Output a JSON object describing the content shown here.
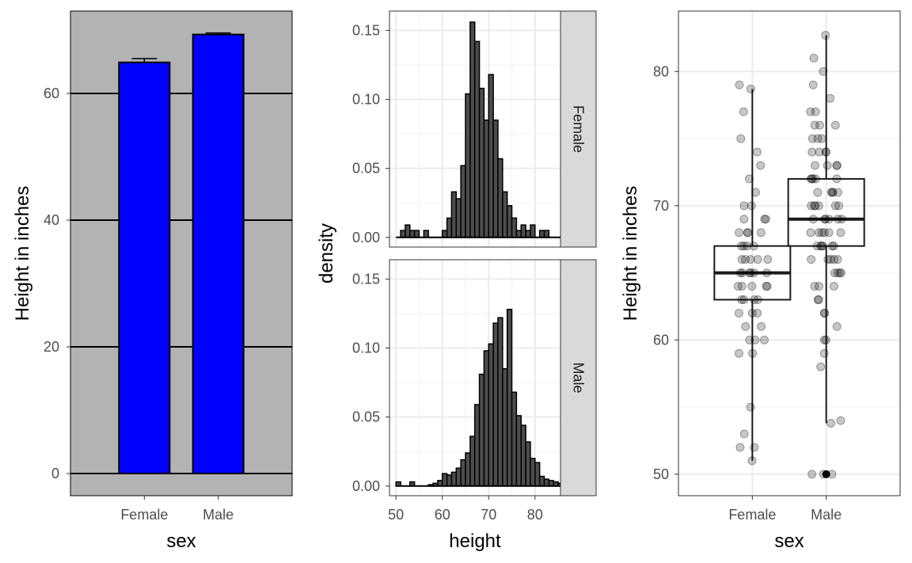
{
  "chart_data": [
    {
      "type": "bar",
      "categories": [
        "Female",
        "Male"
      ],
      "values": [
        64.9,
        69.3
      ],
      "errors": [
        0.6,
        0.25
      ],
      "xlabel": "sex",
      "ylabel": "Height in inches",
      "ylim": [
        -3.5,
        73
      ],
      "yticks": [
        0,
        20,
        40,
        60
      ],
      "colors": {
        "panel": "#b3b3b3",
        "bar": "#0000ff",
        "grid": "#000000"
      }
    },
    {
      "type": "histogram",
      "xlabel": "height",
      "ylabel": "density",
      "xlim": [
        48.6,
        85.5
      ],
      "ylim": [
        -0.007,
        0.164
      ],
      "xticks": [
        50,
        60,
        70,
        80
      ],
      "yticks": [
        0,
        0.05,
        0.1,
        0.15
      ],
      "ytick_labels": [
        "0.00",
        "0.05",
        "0.10",
        "0.15"
      ],
      "bin_start": 50,
      "bin_width": 1,
      "facets": [
        {
          "label": "Female",
          "density": [
            0,
            0.005,
            0.009,
            0.005,
            0.005,
            0,
            0.005,
            0,
            0,
            0,
            0.005,
            0.014,
            0.033,
            0.028,
            0.052,
            0.104,
            0.156,
            0.142,
            0.108,
            0.085,
            0.118,
            0.085,
            0.057,
            0.033,
            0.023,
            0.014,
            0.005,
            0.009,
            0.005,
            0.009,
            0,
            0.005,
            0.005,
            0,
            0,
            0
          ]
        },
        {
          "label": "Male",
          "density": [
            0.003,
            0,
            0,
            0.003,
            0,
            0,
            0,
            0.001,
            0.002,
            0.004,
            0.009,
            0.008,
            0.01,
            0.013,
            0.019,
            0.024,
            0.036,
            0.059,
            0.081,
            0.098,
            0.103,
            0.118,
            0.122,
            0.085,
            0.128,
            0.068,
            0.051,
            0.044,
            0.032,
            0.02,
            0.017,
            0.007,
            0.005,
            0.004,
            0.003,
            0.002
          ]
        }
      ],
      "colors": {
        "bar": "#4d4d4d",
        "strip": "#d9d9d9"
      }
    },
    {
      "type": "boxplot",
      "categories": [
        "Female",
        "Male"
      ],
      "xlabel": "sex",
      "ylabel": "Height in inches",
      "ylim": [
        48.4,
        84.5
      ],
      "yticks": [
        50,
        60,
        70,
        80
      ],
      "boxes": [
        {
          "category": "Female",
          "min": 51,
          "q1": 63,
          "median": 65,
          "q3": 67,
          "max": 78.7
        },
        {
          "category": "Male",
          "min": 53.8,
          "q1": 67,
          "median": 69,
          "q3": 72,
          "max": 82.7
        }
      ],
      "outliers": [
        {
          "category": "Male",
          "y": 50
        }
      ],
      "points": [
        {
          "category": "Female",
          "y": [
            51,
            52,
            52,
            53,
            55,
            59,
            59,
            60,
            60,
            60,
            61,
            61,
            62,
            62,
            62,
            63,
            63,
            63,
            63,
            64,
            64,
            64,
            64,
            64,
            65,
            65,
            65,
            65,
            65,
            65,
            66,
            66,
            66,
            66,
            66,
            67,
            67,
            67,
            67,
            68,
            68,
            68,
            68,
            69,
            69,
            69,
            70,
            70,
            71,
            72,
            73,
            74,
            75,
            77,
            78.7,
            79
          ]
        },
        {
          "category": "Male",
          "y": [
            50,
            50,
            50,
            53.8,
            54,
            58,
            59,
            60,
            60,
            61,
            62,
            62,
            63,
            63,
            64,
            64,
            64,
            65,
            65,
            65,
            65,
            66,
            66,
            66,
            66,
            66,
            67,
            67,
            67,
            67,
            67,
            67,
            68,
            68,
            68,
            68,
            68,
            68,
            69,
            69,
            69,
            69,
            69,
            69,
            70,
            70,
            70,
            70,
            70,
            70,
            71,
            71,
            71,
            71,
            71,
            72,
            72,
            72,
            72,
            72,
            73,
            73,
            73,
            73,
            74,
            74,
            74,
            74,
            75,
            75,
            75,
            76,
            76,
            76,
            77,
            77,
            78,
            79,
            80,
            81,
            82.7
          ]
        }
      ],
      "colors": {
        "grid": "#ebebeb",
        "box": "#1a1a1a",
        "point": "#000000"
      }
    }
  ]
}
